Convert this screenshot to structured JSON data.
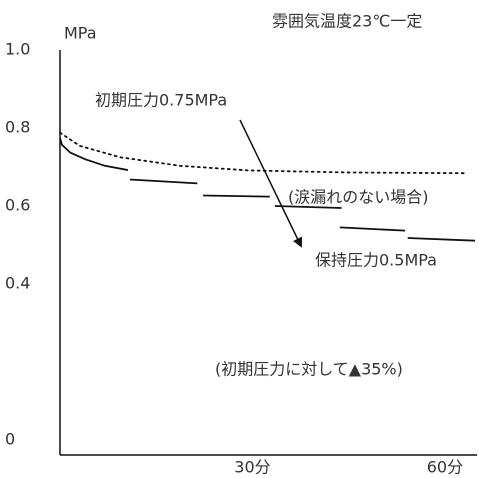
{
  "chart_data": {
    "type": "line",
    "title": "雰囲気温度23℃一定",
    "y_label": "MPa",
    "annotations": [
      "初期圧力0.75MPa",
      "(涙漏れのない場合)",
      "保持圧力0.5MPa",
      "(初期圧力に対して▲35%)"
    ],
    "xlim": [
      0,
      65
    ],
    "xticks": [
      {
        "value": 30,
        "label": "30分"
      },
      {
        "value": 60,
        "label": "60分"
      }
    ],
    "ylim": [
      0,
      1.0
    ],
    "yticks": [
      0,
      0.4,
      0.6,
      0.8,
      {
        "value": 1.0,
        "label": "1.0"
      }
    ],
    "series": [
      {
        "color": "#111111",
        "style": "solid",
        "x": [
          0,
          0.3,
          1.6,
          3.9,
          7.0,
          10.6,
          10.8,
          10.9,
          21.4,
          21.9,
          22.3,
          32.7,
          33.1,
          33.5,
          43.9,
          43.7,
          43.6,
          53.8,
          54.0,
          54.2,
          64.7
        ],
        "values": [
          0.774,
          0.757,
          0.737,
          0.72,
          0.703,
          0.692,
          null,
          0.668,
          0.658,
          null,
          0.627,
          0.624,
          null,
          0.6,
          0.595,
          null,
          0.545,
          0.537,
          null,
          0.518,
          0.511
        ]
      },
      {
        "color": "#111111",
        "style": "dotted",
        "x": [
          0,
          3.1,
          9.4,
          18.7,
          29.6,
          45.2,
          63.1
        ],
        "values": [
          0.788,
          0.754,
          0.725,
          0.703,
          0.691,
          0.686,
          0.684
        ]
      }
    ]
  }
}
